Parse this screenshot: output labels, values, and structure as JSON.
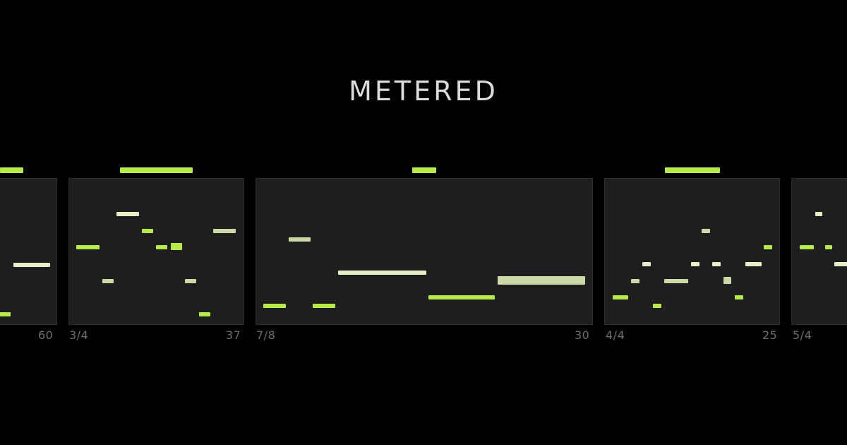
{
  "title": "METERED",
  "panels": [
    {
      "meter": "",
      "count": "60"
    },
    {
      "meter": "3/4",
      "count": "37"
    },
    {
      "meter": "7/8",
      "count": "30"
    },
    {
      "meter": "4/4",
      "count": "25"
    },
    {
      "meter": "5/4",
      "count": ""
    }
  ],
  "colors": {
    "background": "#000000",
    "panel": "#1e1e1e",
    "accent": "#b6ea48",
    "note_pale": "#e6f0c6",
    "note_sage": "#cbd9a6",
    "label": "#6e6e6e",
    "title": "#dcdcdc"
  }
}
